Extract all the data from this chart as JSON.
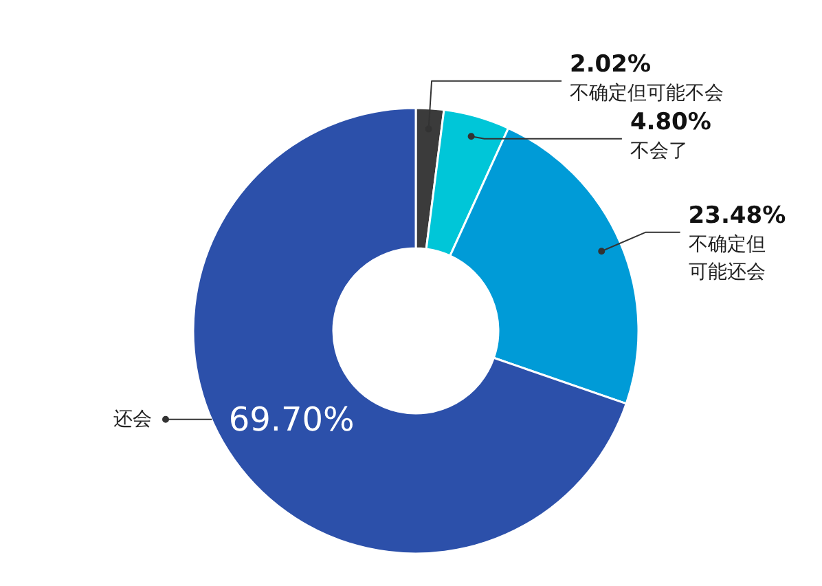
{
  "chart_data": {
    "type": "donut",
    "categories": [
      "不确定但可能不会",
      "不会了",
      "不确定但可能还会",
      "还会"
    ],
    "values": [
      2.02,
      4.8,
      23.48,
      69.7
    ],
    "colors": [
      "#3b3b3b",
      "#00c6d8",
      "#009bd7",
      "#2c50aa"
    ],
    "value_labels": [
      "2.02%",
      "4.80%",
      "23.48%",
      "69.70%"
    ]
  }
}
